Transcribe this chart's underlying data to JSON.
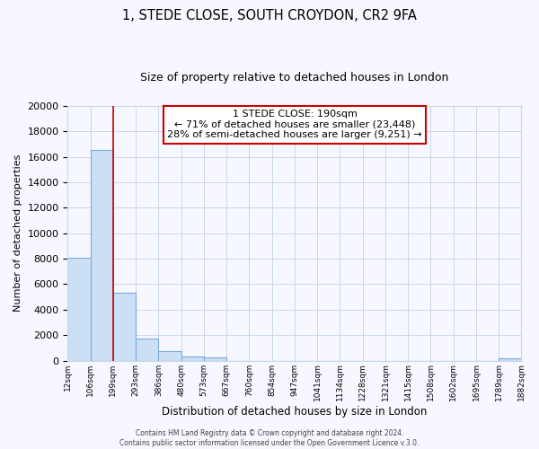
{
  "title_line1": "1, STEDE CLOSE, SOUTH CROYDON, CR2 9FA",
  "title_line2": "Size of property relative to detached houses in London",
  "xlabel": "Distribution of detached houses by size in London",
  "ylabel": "Number of detached properties",
  "bin_labels": [
    "12sqm",
    "106sqm",
    "199sqm",
    "293sqm",
    "386sqm",
    "480sqm",
    "573sqm",
    "667sqm",
    "760sqm",
    "854sqm",
    "947sqm",
    "1041sqm",
    "1134sqm",
    "1228sqm",
    "1321sqm",
    "1415sqm",
    "1508sqm",
    "1602sqm",
    "1695sqm",
    "1789sqm",
    "1882sqm"
  ],
  "bar_values": [
    8100,
    16500,
    5300,
    1750,
    750,
    300,
    250,
    0,
    0,
    0,
    0,
    0,
    0,
    0,
    0,
    0,
    0,
    0,
    0,
    150
  ],
  "bar_color": "#cce0f5",
  "bar_edge_color": "#7aaadd",
  "vline_x_idx": 2,
  "vline_color": "#cc0000",
  "ylim": [
    0,
    20000
  ],
  "yticks": [
    0,
    2000,
    4000,
    6000,
    8000,
    10000,
    12000,
    14000,
    16000,
    18000,
    20000
  ],
  "annotation_title": "1 STEDE CLOSE: 190sqm",
  "annotation_line1": "← 71% of detached houses are smaller (23,448)",
  "annotation_line2": "28% of semi-detached houses are larger (9,251) →",
  "footer_line1": "Contains HM Land Registry data © Crown copyright and database right 2024.",
  "footer_line2": "Contains public sector information licensed under the Open Government Licence v.3.0.",
  "bg_color": "#f7f7ff",
  "grid_color": "#c8d8ea",
  "annotation_box_color": "#ffffff",
  "annotation_box_edge": "#cc0000",
  "title_fontsize": 10.5,
  "subtitle_fontsize": 9,
  "ylabel_fontsize": 8,
  "xlabel_fontsize": 8.5,
  "ytick_fontsize": 8,
  "xtick_fontsize": 6.5,
  "ann_fontsize": 8,
  "footer_fontsize": 5.5
}
